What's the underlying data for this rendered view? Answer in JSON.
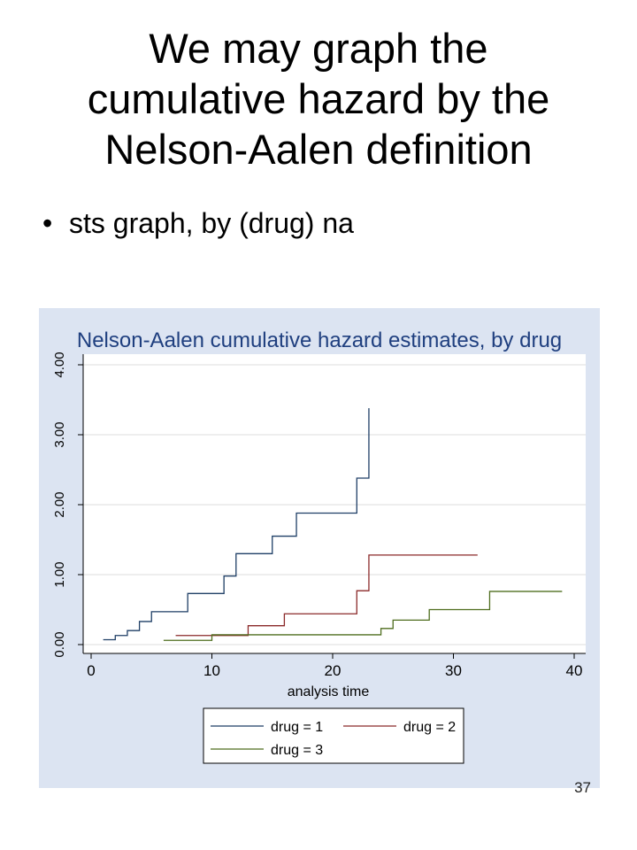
{
  "slide": {
    "title_lines": [
      "We may graph the",
      "cumulative hazard by the",
      "Nelson-Aalen definition"
    ],
    "bullet": "sts graph, by (drug) na",
    "page_number": "37"
  },
  "chart_data": {
    "type": "line",
    "step": true,
    "title": "Nelson-Aalen cumulative hazard estimates, by drug",
    "xlabel": "analysis time",
    "ylabel": "",
    "xlim": [
      0,
      40
    ],
    "ylim": [
      0,
      4
    ],
    "xticks": [
      0,
      10,
      20,
      30,
      40
    ],
    "yticks": [
      0,
      1,
      2,
      3,
      4
    ],
    "ytick_labels": [
      "0.00",
      "1.00",
      "2.00",
      "3.00",
      "4.00"
    ],
    "grid": true,
    "legend_position": "bottom",
    "colors": {
      "plot_background": "#ffffff",
      "outer_background": "#dce4f2",
      "title": "#1f3f7f",
      "grid": "#dddddd"
    },
    "series": [
      {
        "name": "drug = 1",
        "color": "#1f3f66",
        "x": [
          1,
          2,
          3,
          4,
          5,
          8,
          11,
          12,
          15,
          17,
          22,
          23,
          23
        ],
        "y": [
          0.07,
          0.13,
          0.2,
          0.33,
          0.47,
          0.73,
          0.98,
          1.3,
          1.55,
          1.88,
          2.38,
          2.38,
          3.38
        ]
      },
      {
        "name": "drug = 2",
        "color": "#8b2a2a",
        "x": [
          7,
          13,
          16,
          22,
          23,
          32
        ],
        "y": [
          0.13,
          0.27,
          0.44,
          0.77,
          1.28,
          1.28
        ]
      },
      {
        "name": "drug = 3",
        "color": "#4f6e1f",
        "x": [
          6,
          10,
          24,
          25,
          28,
          33,
          39
        ],
        "y": [
          0.06,
          0.14,
          0.23,
          0.35,
          0.5,
          0.76,
          0.76
        ]
      }
    ]
  }
}
